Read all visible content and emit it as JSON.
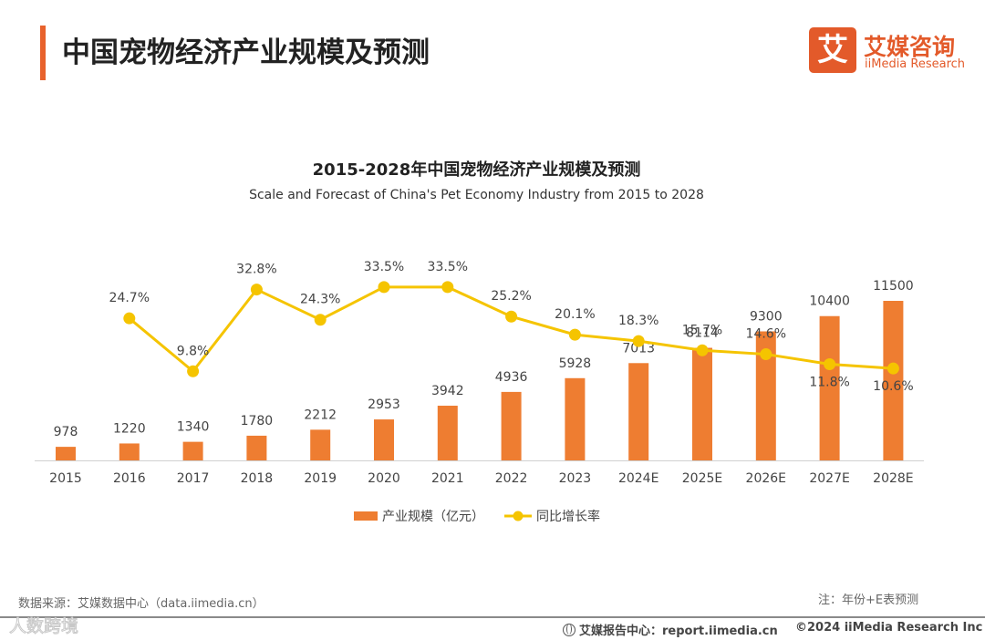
{
  "header": {
    "title": "中国宠物经济产业规模及预测"
  },
  "logo": {
    "glyph": "艾",
    "name_cn": "艾媒咨询",
    "name_en": "iiMedia Research"
  },
  "chart_data": {
    "type": "bar",
    "title": "2015-2028年中国宠物经济产业规模及预测",
    "subtitle": "Scale and Forecast of China's Pet Economy Industry from 2015 to 2028",
    "categories": [
      "2015",
      "2016",
      "2017",
      "2018",
      "2019",
      "2020",
      "2021",
      "2022",
      "2023",
      "2024E",
      "2025E",
      "2026E",
      "2027E",
      "2028E"
    ],
    "series": [
      {
        "name": "产业规模（亿元）",
        "type": "bar",
        "color": "#ee7d31",
        "values": [
          978,
          1220,
          1340,
          1780,
          2212,
          2953,
          3942,
          4936,
          5928,
          7013,
          8114,
          9300,
          10400,
          11500
        ],
        "labels": [
          "978",
          "1220",
          "1340",
          "1780",
          "2212",
          "2953",
          "3942",
          "4936",
          "5928",
          "7013",
          "8114",
          "9300",
          "10400",
          "11500"
        ]
      },
      {
        "name": "同比增长率",
        "type": "line",
        "color": "#f5c400",
        "values": [
          null,
          24.7,
          9.8,
          32.8,
          24.3,
          33.5,
          33.5,
          25.2,
          20.1,
          18.3,
          15.7,
          14.6,
          11.8,
          10.6
        ],
        "labels": [
          "",
          "24.7%",
          "9.8%",
          "32.8%",
          "24.3%",
          "33.5%",
          "33.5%",
          "25.2%",
          "20.1%",
          "18.3%",
          "15.7%",
          "14.6%",
          "11.8%",
          "10.6%"
        ]
      }
    ],
    "legend": {
      "position": "bottom"
    },
    "grid": false
  },
  "footer": {
    "source": "数据来源：艾媒数据中心（data.iimedia.cn）",
    "note": "注：年份+E表预测",
    "report": "艾媒报告中心：report.iimedia.cn",
    "copyright": "©2024  iiMedia Research  Inc"
  },
  "watermark": "人数跨境"
}
